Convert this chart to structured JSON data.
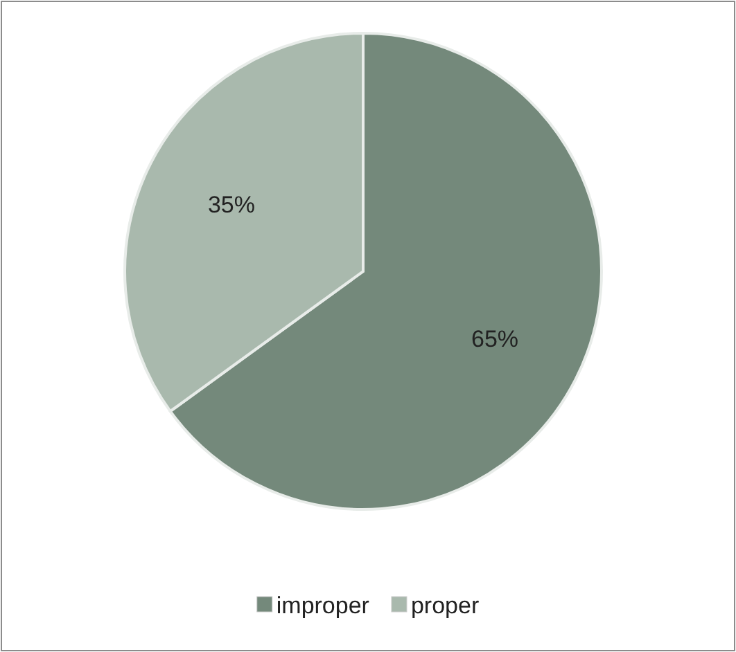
{
  "chart_data": {
    "type": "pie",
    "categories": [
      "improper",
      "proper"
    ],
    "values": [
      65,
      35
    ],
    "colors": [
      "#74897b",
      "#a9b9ad"
    ],
    "value_labels": [
      "65%",
      "35%"
    ],
    "legend": "bottom"
  }
}
